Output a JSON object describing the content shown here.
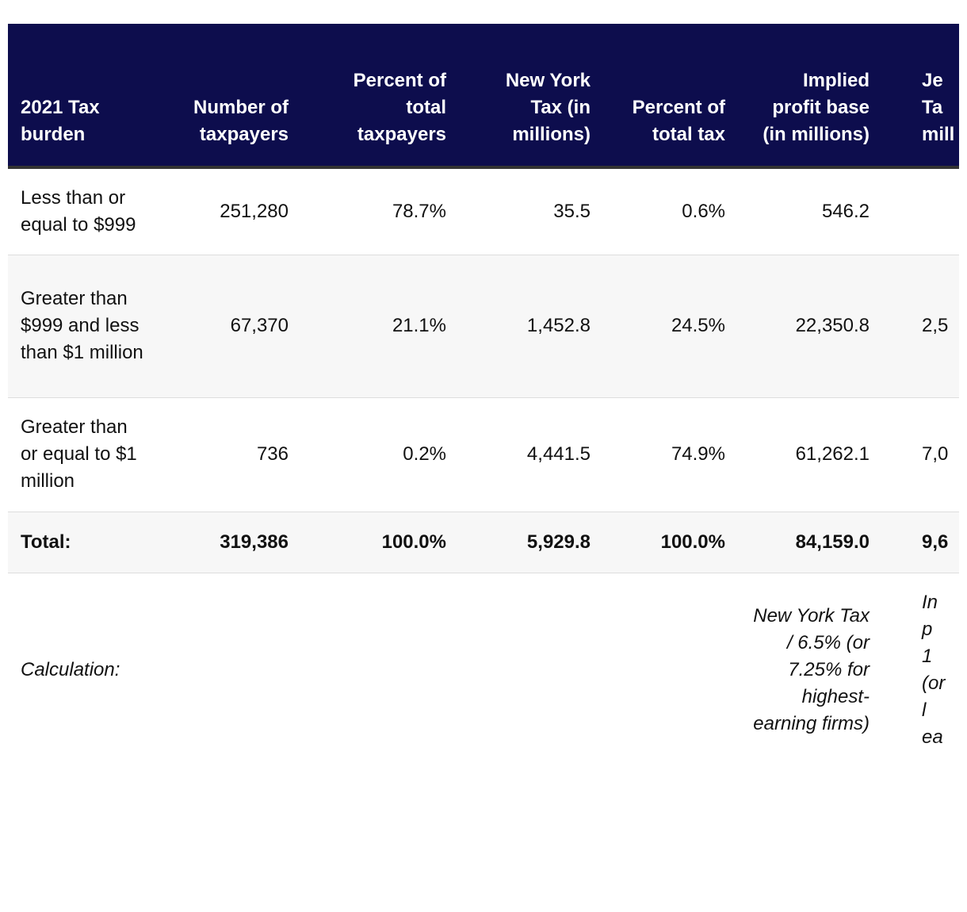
{
  "table": {
    "headers": [
      "2021 Tax burden",
      "Number of taxpayers",
      "Percent of total taxpayers",
      "New York Tax (in millions)",
      "Percent of total tax",
      "Implied profit base (in millions)",
      "Je Ta mill"
    ],
    "rows": [
      [
        "Less than or equal to $999",
        "251,280",
        "78.7%",
        "35.5",
        "0.6%",
        "546.2",
        ""
      ],
      [
        "Greater than $999 and less than $1 million",
        "67,370",
        "21.1%",
        "1,452.8",
        "24.5%",
        "22,350.8",
        "2,5"
      ],
      [
        "Greater than or equal to $1 million",
        "736",
        "0.2%",
        "4,441.5",
        "74.9%",
        "61,262.1",
        "7,0"
      ]
    ],
    "total": [
      "Total:",
      "319,386",
      "100.0%",
      "5,929.8",
      "100.0%",
      "84,159.0",
      "9,6"
    ],
    "calculation": [
      "Calculation:",
      "",
      "",
      "",
      "",
      "New York Tax / 6.5% (or 7.25% for highest-earning firms)",
      "In p 1 (or l ea"
    ]
  }
}
